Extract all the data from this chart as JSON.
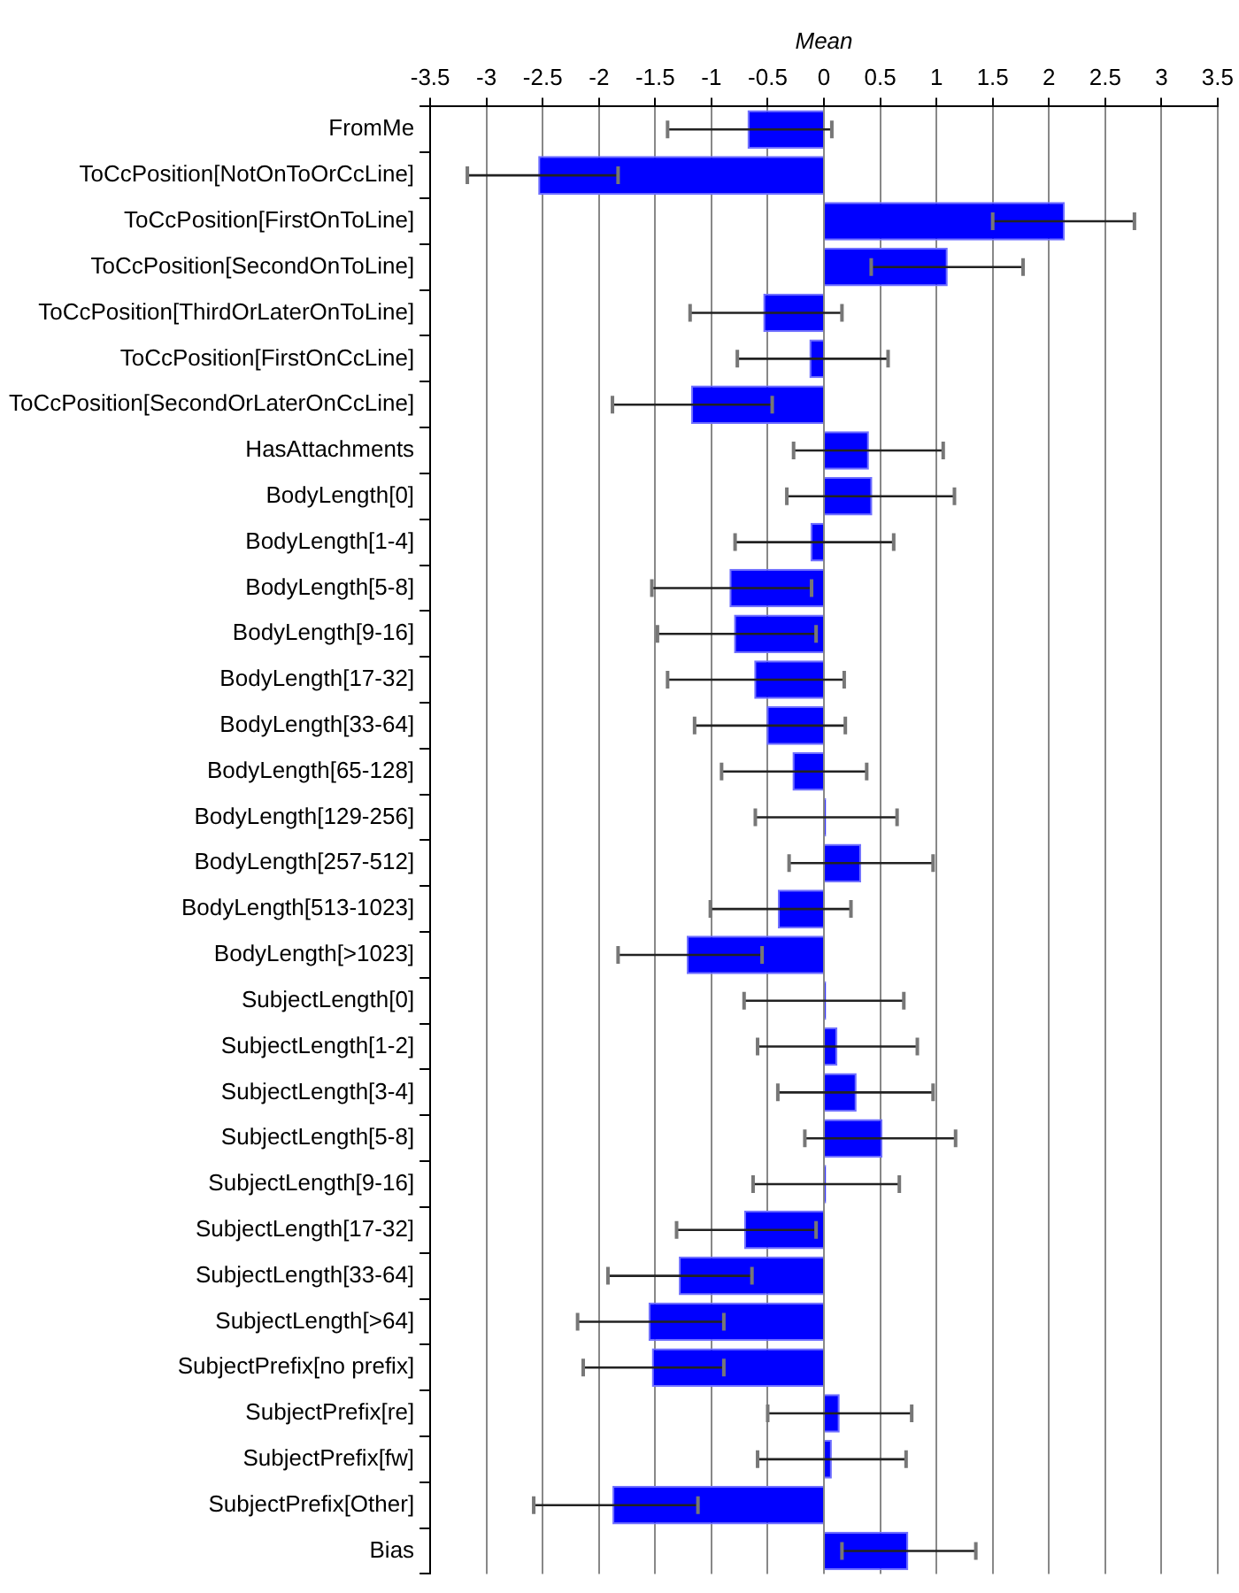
{
  "chart_data": {
    "type": "bar",
    "orientation": "horizontal",
    "xlabel": "Mean",
    "categories": [
      "FromMe",
      "ToCcPosition[NotOnToOrCcLine]",
      "ToCcPosition[FirstOnToLine]",
      "ToCcPosition[SecondOnToLine]",
      "ToCcPosition[ThirdOrLaterOnToLine]",
      "ToCcPosition[FirstOnCcLine]",
      "ToCcPosition[SecondOrLaterOnCcLine]",
      "HasAttachments",
      "BodyLength[0]",
      "BodyLength[1-4]",
      "BodyLength[5-8]",
      "BodyLength[9-16]",
      "BodyLength[17-32]",
      "BodyLength[33-64]",
      "BodyLength[65-128]",
      "BodyLength[129-256]",
      "BodyLength[257-512]",
      "BodyLength[513-1023]",
      "BodyLength[>1023]",
      "SubjectLength[0]",
      "SubjectLength[1-2]",
      "SubjectLength[3-4]",
      "SubjectLength[5-8]",
      "SubjectLength[9-16]",
      "SubjectLength[17-32]",
      "SubjectLength[33-64]",
      "SubjectLength[>64]",
      "SubjectPrefix[no prefix]",
      "SubjectPrefix[re]",
      "SubjectPrefix[fw]",
      "SubjectPrefix[Other]",
      "Bias"
    ],
    "values": [
      -0.68,
      -2.54,
      2.14,
      1.1,
      -0.54,
      -0.13,
      -1.18,
      0.4,
      0.43,
      -0.12,
      -0.84,
      -0.8,
      -0.62,
      -0.51,
      -0.28,
      0.02,
      0.33,
      -0.41,
      -1.22,
      0.02,
      0.12,
      0.29,
      0.52,
      0.02,
      -0.71,
      -1.29,
      -1.56,
      -1.53,
      0.14,
      0.07,
      -1.88,
      0.75
    ],
    "errors": [
      [
        -1.39,
        0.07
      ],
      [
        -3.17,
        -1.83
      ],
      [
        1.5,
        2.76
      ],
      [
        0.42,
        1.77
      ],
      [
        -1.19,
        0.16
      ],
      [
        -0.77,
        0.57
      ],
      [
        -1.88,
        -0.46
      ],
      [
        -0.27,
        1.06
      ],
      [
        -0.33,
        1.16
      ],
      [
        -0.79,
        0.62
      ],
      [
        -1.53,
        -0.11
      ],
      [
        -1.48,
        -0.07
      ],
      [
        -1.39,
        0.18
      ],
      [
        -1.15,
        0.19
      ],
      [
        -0.91,
        0.38
      ],
      [
        -0.61,
        0.65
      ],
      [
        -0.31,
        0.97
      ],
      [
        -1.01,
        0.24
      ],
      [
        -1.83,
        -0.55
      ],
      [
        -0.71,
        0.71
      ],
      [
        -0.59,
        0.83
      ],
      [
        -0.41,
        0.97
      ],
      [
        -0.17,
        1.17
      ],
      [
        -0.63,
        0.67
      ],
      [
        -1.31,
        -0.07
      ],
      [
        -1.92,
        -0.64
      ],
      [
        -2.19,
        -0.89
      ],
      [
        -2.14,
        -0.89
      ],
      [
        -0.5,
        0.78
      ],
      [
        -0.59,
        0.73
      ],
      [
        -2.58,
        -1.12
      ],
      [
        0.16,
        1.35
      ]
    ],
    "color": "#0000ff",
    "xlim": [
      -3.5,
      3.5
    ],
    "xticks": [
      -3.5,
      -3,
      -2.5,
      -2,
      -1.5,
      -1,
      -0.5,
      0,
      0.5,
      1,
      1.5,
      2,
      2.5,
      3,
      3.5
    ],
    "grid": "x",
    "legend": false
  }
}
